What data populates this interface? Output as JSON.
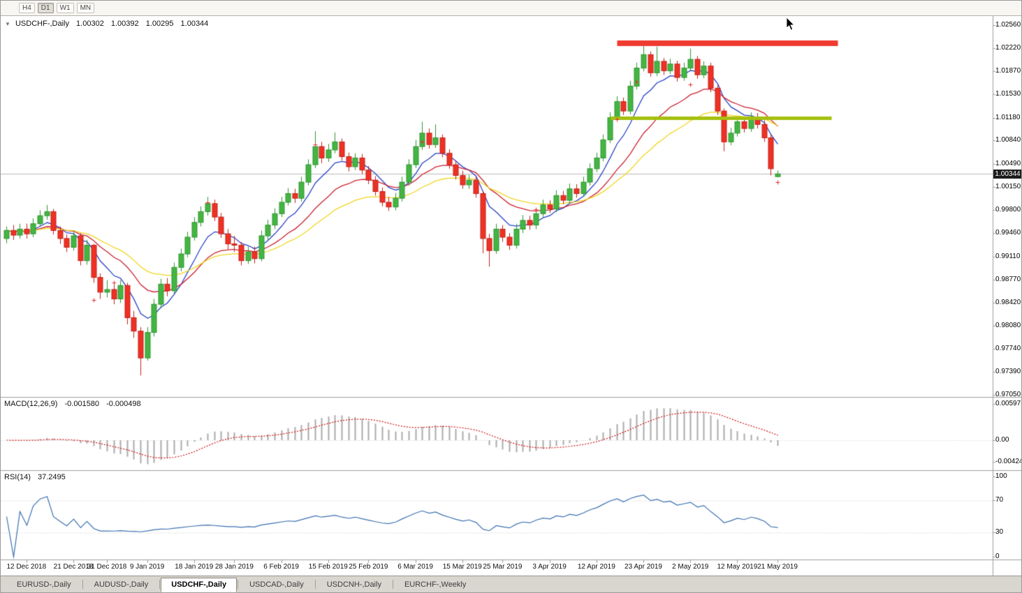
{
  "toolbar": {
    "timeframes": [
      {
        "label": "H4",
        "active": false
      },
      {
        "label": "D1",
        "active": true
      },
      {
        "label": "W1",
        "active": false
      },
      {
        "label": "MN",
        "active": false
      }
    ]
  },
  "chart": {
    "header": {
      "collapse_icon": "▼",
      "symbol": "USDCHF-,Daily",
      "open": "1.00302",
      "high": "1.00392",
      "low": "1.00295",
      "close": "1.00344"
    }
  },
  "chart_data": {
    "type": "candlestick",
    "title": "USDCHF-,Daily",
    "current_price": 1.00344,
    "y_range": {
      "top": 1.0256,
      "bottom": 0.9705
    },
    "y_axis_labels": [
      "1.02560",
      "1.02220",
      "1.01870",
      "1.01530",
      "1.01180",
      "1.00840",
      "1.00490",
      "1.00150",
      "0.99800",
      "0.99460",
      "0.99110",
      "0.98770",
      "0.98420",
      "0.98080",
      "0.97740",
      "0.97390",
      "0.97050"
    ],
    "x_labels": [
      {
        "i": 3,
        "label": "12 Dec 2018"
      },
      {
        "i": 10,
        "label": "21 Dec 2018"
      },
      {
        "i": 15,
        "label": "31 Dec 2018"
      },
      {
        "i": 21,
        "label": "9 Jan 2019"
      },
      {
        "i": 28,
        "label": "18 Jan 2019"
      },
      {
        "i": 34,
        "label": "28 Jan 2019"
      },
      {
        "i": 41,
        "label": "6 Feb 2019"
      },
      {
        "i": 48,
        "label": "15 Feb 2019"
      },
      {
        "i": 54,
        "label": "25 Feb 2019"
      },
      {
        "i": 61,
        "label": "6 Mar 2019"
      },
      {
        "i": 68,
        "label": "15 Mar 2019"
      },
      {
        "i": 74,
        "label": "25 Mar 2019"
      },
      {
        "i": 81,
        "label": "3 Apr 2019"
      },
      {
        "i": 88,
        "label": "12 Apr 2019"
      },
      {
        "i": 95,
        "label": "23 Apr 2019"
      },
      {
        "i": 102,
        "label": "2 May 2019"
      },
      {
        "i": 109,
        "label": "12 May 2019"
      },
      {
        "i": 115,
        "label": "21 May 2019"
      }
    ],
    "candles": {
      "o": [
        0.9938,
        0.995,
        0.9943,
        0.9952,
        0.9945,
        0.996,
        0.9972,
        0.9978,
        0.995,
        0.9938,
        0.9925,
        0.9942,
        0.9905,
        0.9928,
        0.988,
        0.9858,
        0.9862,
        0.9848,
        0.9868,
        0.982,
        0.98,
        0.976,
        0.9798,
        0.984,
        0.987,
        0.986,
        0.9895,
        0.9915,
        0.994,
        0.9962,
        0.9978,
        0.999,
        0.997,
        0.9945,
        0.993,
        0.9928,
        0.9905,
        0.9918,
        0.9908,
        0.9942,
        0.9958,
        0.9975,
        0.9992,
        1.0005,
        0.9998,
        1.0022,
        1.0048,
        1.0075,
        1.0058,
        1.007,
        1.0082,
        1.006,
        1.0045,
        1.0058,
        1.004,
        1.0025,
        1.0008,
        0.9992,
        0.9985,
        0.9998,
        1.0022,
        1.0048,
        1.0075,
        1.0095,
        1.0078,
        1.0088,
        1.0065,
        1.0048,
        1.0032,
        1.0018,
        1.0025,
        1.0005,
        0.9938,
        0.992,
        0.9952,
        0.994,
        0.9928,
        0.9952,
        0.9965,
        0.9958,
        0.9975,
        0.9988,
        0.9982,
        1.0002,
        0.9995,
        1.0012,
        1.0005,
        1.0022,
        1.0042,
        1.0058,
        1.0085,
        1.0118,
        1.0142,
        1.0128,
        1.0165,
        1.0192,
        1.0212,
        1.0185,
        1.0202,
        1.0188,
        1.0198,
        1.0178,
        1.0192,
        1.0205,
        1.0182,
        1.0195,
        1.0162,
        1.0128,
        1.0082,
        1.0095,
        1.0112,
        1.0102,
        1.0118,
        1.0108,
        1.0088,
        1.00302
      ],
      "h": [
        0.9956,
        0.9958,
        0.996,
        0.996,
        0.9968,
        0.998,
        0.9988,
        0.9982,
        0.9956,
        0.9944,
        0.995,
        0.9946,
        0.9936,
        0.993,
        0.9886,
        0.9876,
        0.987,
        0.9876,
        0.9872,
        0.983,
        0.9806,
        0.9806,
        0.9848,
        0.9878,
        0.9879,
        0.9902,
        0.9923,
        0.9948,
        0.997,
        0.9986,
        1.0,
        0.9996,
        0.9976,
        0.9952,
        0.9942,
        0.9933,
        0.9926,
        0.9926,
        0.995,
        0.9966,
        0.9983,
        1.0,
        1.0013,
        1.0012,
        1.003,
        1.0056,
        1.0098,
        1.0082,
        1.0079,
        1.0096,
        1.0087,
        1.0066,
        1.0065,
        1.0064,
        1.0046,
        1.0031,
        1.0014,
        1.0,
        1.0006,
        1.003,
        1.0056,
        1.0085,
        1.0112,
        1.0102,
        1.0108,
        1.0093,
        1.0071,
        1.0054,
        1.0039,
        1.0033,
        1.003,
        1.0009,
        0.9945,
        0.996,
        0.9958,
        0.9946,
        0.996,
        0.9973,
        0.9972,
        0.9983,
        0.9996,
        0.9995,
        1.001,
        1.0009,
        1.002,
        1.0019,
        1.003,
        1.005,
        1.0066,
        1.0093,
        1.0126,
        1.015,
        1.0148,
        1.0173,
        1.02,
        1.0226,
        1.0217,
        1.0224,
        1.0207,
        1.0206,
        1.0203,
        1.02,
        1.0221,
        1.021,
        1.0202,
        1.02,
        1.0167,
        1.0132,
        1.0103,
        1.012,
        1.0119,
        1.0126,
        1.0125,
        1.0114,
        1.0093,
        1.00392
      ],
      "l": [
        0.9931,
        0.9936,
        0.9938,
        0.9938,
        0.994,
        0.9956,
        0.9966,
        0.9944,
        0.993,
        0.9918,
        0.992,
        0.9898,
        0.9899,
        0.9872,
        0.9848,
        0.985,
        0.984,
        0.9842,
        0.981,
        0.979,
        0.9734,
        0.9756,
        0.9792,
        0.9834,
        0.9852,
        0.9856,
        0.9889,
        0.991,
        0.9935,
        0.9956,
        0.9972,
        0.9964,
        0.9939,
        0.9922,
        0.9918,
        0.9898,
        0.99,
        0.9901,
        0.9904,
        0.9936,
        0.9952,
        0.997,
        0.9987,
        0.9991,
        0.9993,
        1.0017,
        1.0043,
        1.005,
        1.0052,
        1.0065,
        1.0054,
        1.0038,
        1.004,
        1.0034,
        1.0019,
        1.0002,
        0.9986,
        0.9979,
        0.998,
        0.9993,
        1.0017,
        1.0043,
        1.007,
        1.0072,
        1.0073,
        1.0059,
        1.0042,
        1.0026,
        1.0012,
        1.0012,
        0.9999,
        0.9916,
        0.9896,
        0.9915,
        0.9933,
        0.9921,
        0.9923,
        0.9946,
        0.9951,
        0.9952,
        0.997,
        0.9976,
        0.9977,
        0.9989,
        0.999,
        0.9999,
        1.0,
        1.0017,
        1.0037,
        1.0053,
        1.008,
        1.0113,
        1.0122,
        1.0123,
        1.016,
        1.0187,
        1.0179,
        1.018,
        1.0182,
        1.0183,
        1.0172,
        1.0173,
        1.0187,
        1.0176,
        1.0177,
        1.0156,
        1.0122,
        1.0068,
        1.0077,
        1.009,
        1.0096,
        1.0097,
        1.0102,
        1.0082,
        1.0032,
        1.00295
      ],
      "c": [
        0.995,
        0.9943,
        0.9952,
        0.9945,
        0.996,
        0.9972,
        0.9978,
        0.995,
        0.9938,
        0.9925,
        0.9942,
        0.9905,
        0.9928,
        0.988,
        0.9858,
        0.9862,
        0.9848,
        0.9868,
        0.982,
        0.98,
        0.976,
        0.9798,
        0.984,
        0.987,
        0.986,
        0.9895,
        0.9915,
        0.994,
        0.9962,
        0.9978,
        0.999,
        0.997,
        0.9945,
        0.993,
        0.9928,
        0.9905,
        0.9918,
        0.9908,
        0.9942,
        0.9958,
        0.9975,
        0.9992,
        1.0005,
        0.9998,
        1.0022,
        1.0048,
        1.0075,
        1.0058,
        1.007,
        1.0082,
        1.006,
        1.0045,
        1.0058,
        1.004,
        1.0025,
        1.0008,
        0.9992,
        0.9985,
        0.9998,
        1.0022,
        1.0048,
        1.0075,
        1.0095,
        1.0078,
        1.0088,
        1.0065,
        1.0048,
        1.0032,
        1.0018,
        1.0025,
        1.0005,
        0.9938,
        0.992,
        0.9952,
        0.994,
        0.9928,
        0.9952,
        0.9965,
        0.9958,
        0.9975,
        0.9988,
        0.9982,
        1.0002,
        0.9995,
        1.0012,
        1.0005,
        1.0022,
        1.0042,
        1.0058,
        1.0085,
        1.0118,
        1.0142,
        1.0128,
        1.0165,
        1.0192,
        1.0212,
        1.0185,
        1.0202,
        1.0188,
        1.0198,
        1.0178,
        1.0192,
        1.0205,
        1.0182,
        1.0195,
        1.0162,
        1.0128,
        1.0082,
        1.0095,
        1.0112,
        1.0102,
        1.0118,
        1.0108,
        1.0088,
        1.0042,
        1.00344
      ]
    },
    "moving_averages": [
      {
        "name": "fast-ma",
        "period": 7,
        "color": "#2742c8"
      },
      {
        "name": "medium-ma",
        "period": 16,
        "color": "#cc2030"
      },
      {
        "name": "slow-ma",
        "period": 28,
        "color": "#efd520"
      }
    ],
    "objects": {
      "resistance_line": {
        "price": 1.0229,
        "from_i": 91,
        "to_i": 124,
        "thickness": 8,
        "color": "#ef3b30"
      },
      "support_line": {
        "price": 1.0117,
        "from_i": 90,
        "to_i": 123,
        "thickness": 5,
        "color": "#a5c00e"
      }
    },
    "markers": [
      {
        "i": 13,
        "p": 0.9846
      },
      {
        "i": 16,
        "p": 0.9872
      },
      {
        "i": 20,
        "p": 0.9768
      },
      {
        "i": 30,
        "p": 0.9992
      },
      {
        "i": 46,
        "p": 1.0078
      },
      {
        "i": 55,
        "p": 1.0016
      },
      {
        "i": 62,
        "p": 1.0082
      },
      {
        "i": 79,
        "p": 0.9982
      },
      {
        "i": 91,
        "p": 1.0116
      },
      {
        "i": 94,
        "p": 1.0172
      },
      {
        "i": 102,
        "p": 1.0168
      },
      {
        "i": 115,
        "p": 1.0022
      }
    ],
    "colors": {
      "bull": "#44b543",
      "bull_edge": "#2f9631",
      "bear": "#ef3124",
      "bear_edge": "#c2211a",
      "histogram": "#ababab",
      "signal": "#cc1111",
      "rsi": "#3a6fb0",
      "price_line": "#b8b8b8",
      "badge_bg": "#1c1c1c"
    }
  },
  "macd": {
    "label": "MACD(12,26,9)",
    "value_main": "-0.001580",
    "value_signal": "-0.000498",
    "axis_labels": [
      "0.00597",
      "0.00",
      "-0.004243"
    ],
    "fast": 12,
    "slow": 26,
    "smoothing": 9
  },
  "rsi": {
    "label": "RSI(14)",
    "value": "37.2495",
    "axis_labels": [
      "100",
      "70",
      "30",
      "0"
    ],
    "period": 14,
    "levels": [
      70,
      30
    ]
  },
  "tabs": [
    {
      "label": "EURUSD-,Daily",
      "active": false
    },
    {
      "label": "AUDUSD-,Daily",
      "active": false
    },
    {
      "label": "USDCHF-,Daily",
      "active": true
    },
    {
      "label": "USDCAD-,Daily",
      "active": false
    },
    {
      "label": "USDCNH-,Daily",
      "active": false
    },
    {
      "label": "EURCHF-,Weekly",
      "active": false
    }
  ]
}
